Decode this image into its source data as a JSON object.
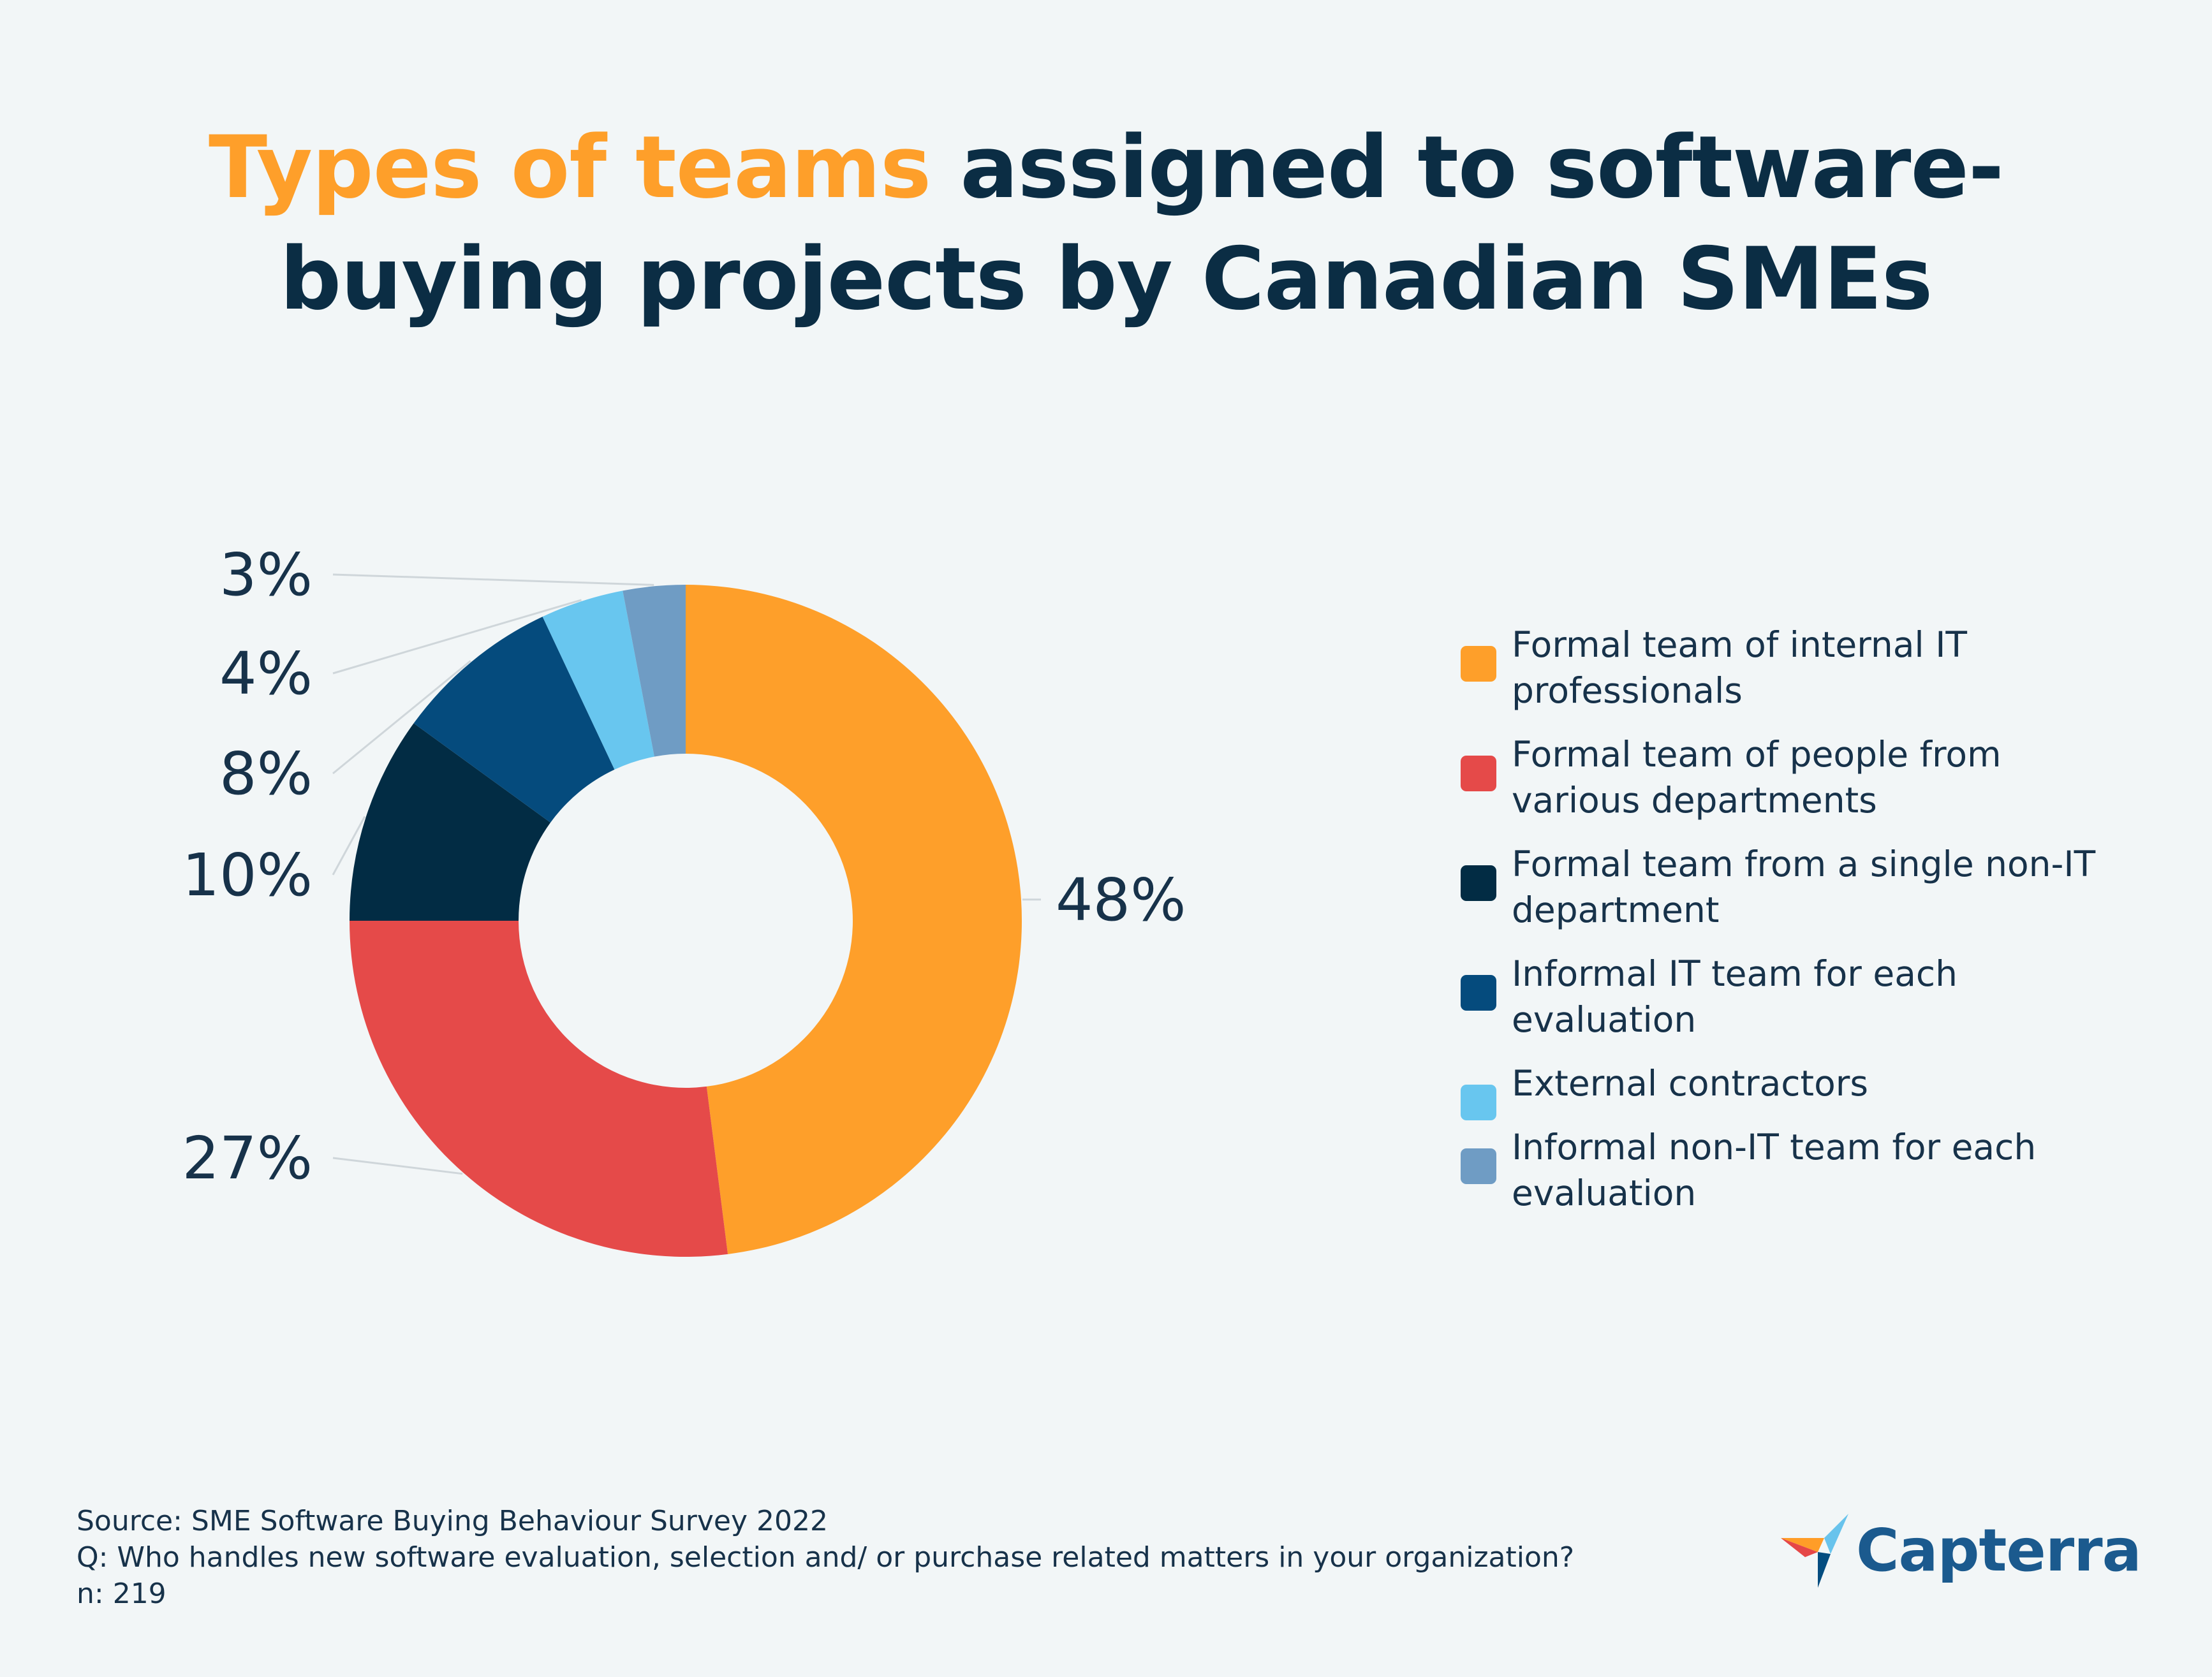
{
  "title": {
    "highlight": "Types of teams",
    "line1_rest": " assigned to software-",
    "line2": "buying projects by Canadian SMEs"
  },
  "colors": {
    "title_accent": "#fe9f2a",
    "text_dark": "#0b2d44",
    "background": "#f2f6f7"
  },
  "chart_data": {
    "type": "pie",
    "variant": "donut",
    "categories": [
      "Formal team of internal IT professionals",
      "Formal team of people from various departments",
      "Formal team from a single non-IT department",
      "Informal IT team for each evaluation",
      "External contractors",
      "Informal non-IT team for each evaluation"
    ],
    "values": [
      48,
      27,
      10,
      8,
      4,
      3
    ],
    "labels": [
      "48%",
      "27%",
      "10%",
      "8%",
      "4%",
      "3%"
    ],
    "colors": [
      "#fe9f2a",
      "#e54a49",
      "#022c44",
      "#054b7d",
      "#68c6ef",
      "#6f9cc4"
    ],
    "legend_position": "right"
  },
  "legend": [
    {
      "line1": "Formal team of internal IT",
      "line2": "professionals"
    },
    {
      "line1": "Formal team of people from",
      "line2": "various departments"
    },
    {
      "line1": "Formal team from a single non-IT",
      "line2": "department"
    },
    {
      "line1": "Informal IT team for each",
      "line2": "evaluation"
    },
    {
      "line1": "External contractors",
      "line2": ""
    },
    {
      "line1": "Informal non-IT team for each",
      "line2": "evaluation"
    }
  ],
  "footer": {
    "source": "Source: SME Software Buying Behaviour Survey 2022",
    "question": "Q: Who handles new software evaluation, selection and/ or purchase related matters in your organization?",
    "n": "n: 219"
  },
  "logo": {
    "text": "Capterra",
    "icon": "capterra-arrow-icon"
  }
}
